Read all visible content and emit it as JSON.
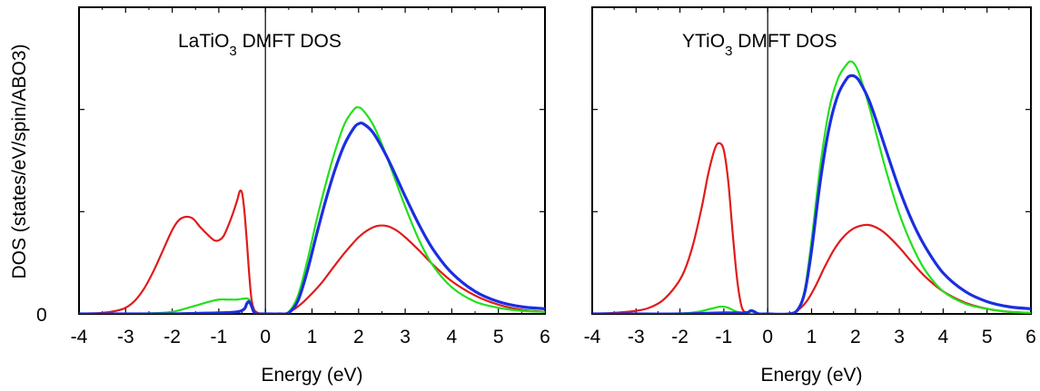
{
  "chart_data": [
    {
      "type": "line",
      "title_main": "LaTiO",
      "title_sub": "3",
      "title_rest": " DMFT DOS",
      "xlabel": "Energy (eV)",
      "ylabel": "DOS (states/eV/spin/ABO3)",
      "xlim": [
        -4,
        6
      ],
      "ylim": [
        0,
        3
      ],
      "xticks": [
        "-4",
        "-3",
        "-2",
        "-1",
        "0",
        "1",
        "2",
        "3",
        "4",
        "5",
        "6"
      ],
      "yticks": [
        "0"
      ],
      "fermi_level": 0,
      "series": [
        {
          "color": "#e01b1b",
          "x": [
            -4,
            -3.5,
            -3.2,
            -3,
            -2.8,
            -2.6,
            -2.4,
            -2.2,
            -2,
            -1.85,
            -1.7,
            -1.55,
            -1.4,
            -1.25,
            -1.1,
            -1.0,
            -0.9,
            -0.8,
            -0.7,
            -0.6,
            -0.55,
            -0.5,
            -0.45,
            -0.4,
            -0.35,
            -0.3,
            -0.25,
            -0.2,
            -0.1,
            0,
            0.2,
            0.4,
            0.6,
            0.8,
            1.0,
            1.2,
            1.4,
            1.6,
            1.8,
            2.0,
            2.2,
            2.4,
            2.6,
            2.8,
            3.0,
            3.3,
            3.6,
            4.0,
            4.5,
            5.0,
            5.5,
            6.0
          ],
          "y": [
            0.0,
            0.01,
            0.03,
            0.06,
            0.13,
            0.25,
            0.42,
            0.62,
            0.82,
            0.92,
            0.95,
            0.93,
            0.85,
            0.78,
            0.72,
            0.72,
            0.76,
            0.86,
            0.98,
            1.12,
            1.2,
            1.18,
            1.0,
            0.72,
            0.4,
            0.15,
            0.05,
            0.02,
            0.0,
            0.0,
            0.0,
            0.0,
            0.04,
            0.11,
            0.2,
            0.3,
            0.42,
            0.54,
            0.65,
            0.75,
            0.82,
            0.86,
            0.86,
            0.82,
            0.75,
            0.62,
            0.48,
            0.32,
            0.18,
            0.09,
            0.04,
            0.02
          ]
        },
        {
          "color": "#22e01b",
          "x": [
            -4,
            -3,
            -2.5,
            -2,
            -1.5,
            -1.2,
            -1.0,
            -0.8,
            -0.6,
            -0.45,
            -0.35,
            -0.28,
            -0.2,
            0,
            0.3,
            0.5,
            0.7,
            0.9,
            1.1,
            1.3,
            1.5,
            1.7,
            1.9,
            2.0,
            2.1,
            2.3,
            2.5,
            2.7,
            3.0,
            3.3,
            3.6,
            4.0,
            4.5,
            5.0,
            5.5,
            6.0
          ],
          "y": [
            0.0,
            0.0,
            0.005,
            0.02,
            0.08,
            0.12,
            0.14,
            0.14,
            0.14,
            0.15,
            0.14,
            0.05,
            0.0,
            0.0,
            0.0,
            0.02,
            0.18,
            0.52,
            0.92,
            1.28,
            1.6,
            1.86,
            2.0,
            2.02,
            1.99,
            1.86,
            1.66,
            1.42,
            1.05,
            0.72,
            0.47,
            0.26,
            0.12,
            0.06,
            0.03,
            0.02
          ]
        },
        {
          "color": "#1b2ee0",
          "x": [
            -4,
            -3,
            -2,
            -1.5,
            -1,
            -0.6,
            -0.45,
            -0.4,
            -0.35,
            -0.3,
            -0.25,
            -0.2,
            -0.1,
            0,
            0.3,
            0.5,
            0.7,
            0.9,
            1.1,
            1.3,
            1.5,
            1.7,
            1.9,
            2.0,
            2.1,
            2.3,
            2.5,
            2.7,
            3.0,
            3.3,
            3.6,
            4.0,
            4.5,
            5.0,
            5.5,
            6.0
          ],
          "y": [
            0.0,
            0.0,
            0.0,
            0.005,
            0.01,
            0.02,
            0.05,
            0.1,
            0.12,
            0.08,
            0.02,
            0.0,
            0.0,
            0.0,
            0.0,
            0.01,
            0.13,
            0.42,
            0.78,
            1.12,
            1.42,
            1.66,
            1.82,
            1.86,
            1.86,
            1.78,
            1.63,
            1.45,
            1.15,
            0.87,
            0.63,
            0.4,
            0.22,
            0.12,
            0.07,
            0.05
          ]
        }
      ]
    },
    {
      "type": "line",
      "title_main": "YTiO",
      "title_sub": "3",
      "title_rest": " DMFT DOS",
      "xlabel": "Energy (eV)",
      "ylabel": "",
      "xlim": [
        -4,
        6
      ],
      "ylim": [
        0,
        3
      ],
      "xticks": [
        "-4",
        "-3",
        "-2",
        "-1",
        "0",
        "1",
        "2",
        "3",
        "4",
        "5",
        "6"
      ],
      "yticks": [],
      "fermi_level": 0,
      "series": [
        {
          "color": "#e01b1b",
          "x": [
            -4,
            -3.5,
            -3,
            -2.7,
            -2.4,
            -2.1,
            -1.9,
            -1.7,
            -1.5,
            -1.35,
            -1.2,
            -1.1,
            -1.0,
            -0.9,
            -0.8,
            -0.7,
            -0.6,
            -0.5,
            -0.4,
            -0.3,
            0,
            0.5,
            0.7,
            0.9,
            1.1,
            1.3,
            1.5,
            1.7,
            1.9,
            2.1,
            2.3,
            2.5,
            2.7,
            3.0,
            3.3,
            3.6,
            4.0,
            4.5,
            5.0,
            5.5,
            6.0
          ],
          "y": [
            0.0,
            0.01,
            0.03,
            0.06,
            0.13,
            0.27,
            0.42,
            0.68,
            1.05,
            1.38,
            1.62,
            1.67,
            1.6,
            1.3,
            0.8,
            0.35,
            0.08,
            0.01,
            0.0,
            0.0,
            0.0,
            0.0,
            0.04,
            0.13,
            0.28,
            0.46,
            0.62,
            0.74,
            0.82,
            0.86,
            0.87,
            0.84,
            0.78,
            0.65,
            0.5,
            0.36,
            0.22,
            0.11,
            0.05,
            0.02,
            0.01
          ]
        },
        {
          "color": "#22e01b",
          "x": [
            -4,
            -3,
            -2,
            -1.6,
            -1.3,
            -1.1,
            -1.0,
            -0.9,
            -0.7,
            -0.5,
            -0.3,
            0,
            0.5,
            0.7,
            0.85,
            1.0,
            1.2,
            1.4,
            1.6,
            1.8,
            1.9,
            2.0,
            2.1,
            2.3,
            2.5,
            2.7,
            3.0,
            3.3,
            3.6,
            4.0,
            4.5,
            5.0,
            5.5,
            6.0
          ],
          "y": [
            0.0,
            0.0,
            0.005,
            0.02,
            0.05,
            0.07,
            0.07,
            0.06,
            0.02,
            0.01,
            0.0,
            0.0,
            0.0,
            0.05,
            0.25,
            0.72,
            1.45,
            2.0,
            2.3,
            2.44,
            2.47,
            2.43,
            2.33,
            2.05,
            1.72,
            1.4,
            0.98,
            0.66,
            0.42,
            0.22,
            0.1,
            0.05,
            0.02,
            0.01
          ]
        },
        {
          "color": "#1b2ee0",
          "x": [
            -4,
            -3,
            -2,
            -1,
            -0.5,
            -0.4,
            -0.35,
            -0.3,
            -0.2,
            0,
            0.5,
            0.7,
            0.85,
            1.0,
            1.2,
            1.4,
            1.6,
            1.8,
            1.9,
            2.0,
            2.1,
            2.3,
            2.5,
            2.7,
            3.0,
            3.3,
            3.6,
            4.0,
            4.5,
            5.0,
            5.5,
            6.0
          ],
          "y": [
            0.0,
            0.0,
            0.0,
            0.01,
            0.01,
            0.03,
            0.03,
            0.02,
            0.0,
            0.0,
            0.0,
            0.05,
            0.22,
            0.62,
            1.3,
            1.82,
            2.14,
            2.3,
            2.33,
            2.32,
            2.27,
            2.1,
            1.86,
            1.6,
            1.22,
            0.9,
            0.65,
            0.4,
            0.22,
            0.12,
            0.07,
            0.05
          ]
        }
      ]
    }
  ]
}
